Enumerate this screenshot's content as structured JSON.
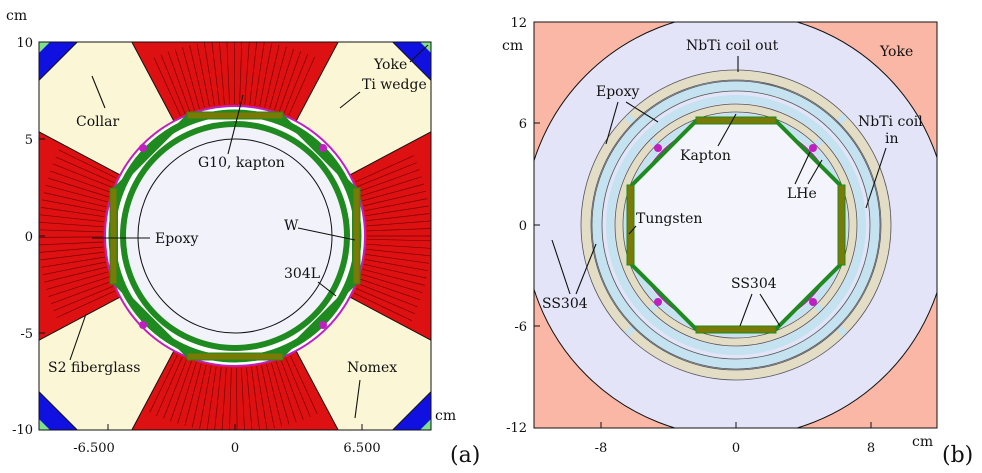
{
  "panel_a": {
    "panel_label": "(a)",
    "unit_y": "cm",
    "unit_x": "cm",
    "y_ticks": [
      "10",
      "5",
      "0",
      "-5",
      "-10"
    ],
    "x_ticks": [
      "-6.500",
      "0",
      "6.500"
    ],
    "labels": {
      "collar": "Collar",
      "yoke": "Yoke",
      "ti_wedge": "Ti wedge",
      "g10_kapton": "G10, kapton",
      "epoxy": "Epoxy",
      "w": "W",
      "ss304l": "304L",
      "nomex": "Nomex",
      "s2_fiberglass": "S2 fiberglass"
    },
    "colors": {
      "yoke_corner": "#1010e0",
      "corner_accent": "#7ee08a",
      "collar": "#fbf7d6",
      "coil": "#dd1111",
      "ring": "#1f8a1f",
      "plate": "#7a7a06",
      "bore": "#f2f2fb",
      "pipe": "#c020c0"
    }
  },
  "panel_b": {
    "panel_label": "(b)",
    "unit_y": "cm",
    "unit_x": "cm",
    "y_ticks": [
      "12",
      "6",
      "0",
      "-6",
      "-12"
    ],
    "x_ticks": [
      "-8",
      "0",
      "8"
    ],
    "labels": {
      "nbti_coil_out": "NbTi coil out",
      "yoke": "Yoke",
      "epoxy": "Epoxy",
      "nbti_coil_in_1": "NbTi coil",
      "nbti_coil_in_2": "in",
      "kapton": "Kapton",
      "lhe": "LHe",
      "tungsten": "Tungsten",
      "ss304_left": "SS304",
      "ss304_bottom": "SS304"
    },
    "colors": {
      "yoke": "#fbb7a6",
      "inner_disk": "#e4e4f8",
      "ss304_ring": "#c5e2f0",
      "coil": "#e2ddc4",
      "ring": "#1f8a1f",
      "plate": "#7a7a06",
      "bore": "#f4f4fc",
      "pipe": "#c020c0"
    }
  }
}
